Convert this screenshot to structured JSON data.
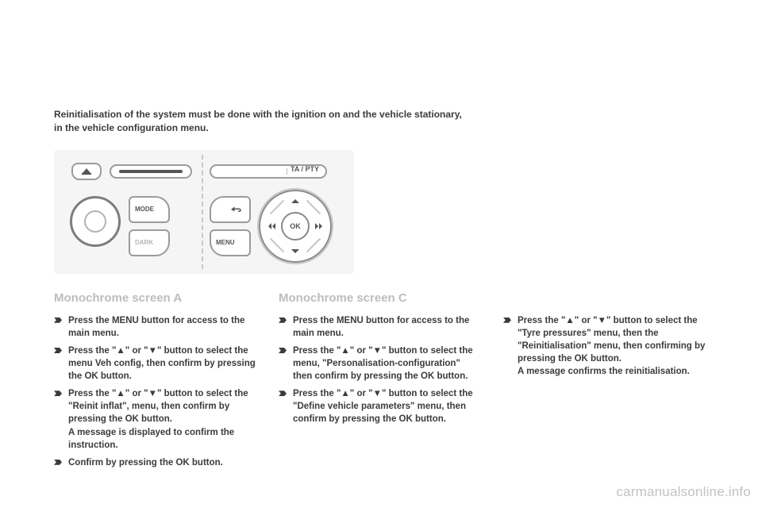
{
  "intro": {
    "line1": "Reinitialisation of the system must be done with the ignition on and the vehicle stationary,",
    "line2": "in the vehicle configuration menu."
  },
  "panel": {
    "mode_label": "MODE",
    "dark_label": "DARK",
    "menu_label": "MENU",
    "ok_label": "OK",
    "tapty_label": "TA / PTY"
  },
  "colA": {
    "heading": "Monochrome screen A",
    "items": [
      "Press the MENU button for access to the main menu.",
      "Press the \"▲\" or \"▼\" button to select the menu Veh config, then confirm by pressing the OK button.",
      "Press the \"▲\" or \"▼\" button to select the \"Reinit inflat\", menu, then confirm by pressing the OK button.\nA message is displayed to confirm the instruction.",
      "Confirm by pressing the OK button."
    ]
  },
  "colC": {
    "heading": "Monochrome screen C",
    "items": [
      "Press the MENU button for access to the main menu.",
      "Press the \"▲\" or \"▼\" button to select the menu, \"Personalisation-configuration\" then confirm by pressing the OK button.",
      "Press the \"▲\" or \"▼\" button to select the \"Define vehicle parameters\" menu, then confirm by pressing the OK button."
    ]
  },
  "col3": {
    "items": [
      "Press the \"▲\" or \"▼\" button to select the \"Tyre pressures\" menu, then the \"Reinitialisation\" menu, then confirming by pressing the OK button.\nA message confirms the reinitialisation."
    ]
  },
  "watermark": "carmanualsonline.info",
  "colors": {
    "text": "#3b3b3b",
    "heading_muted": "#bdbdbd",
    "panel_bg": "#f5f5f5",
    "line": "#9b9b9b",
    "watermark": "#c2c2c2",
    "background": "#ffffff"
  }
}
